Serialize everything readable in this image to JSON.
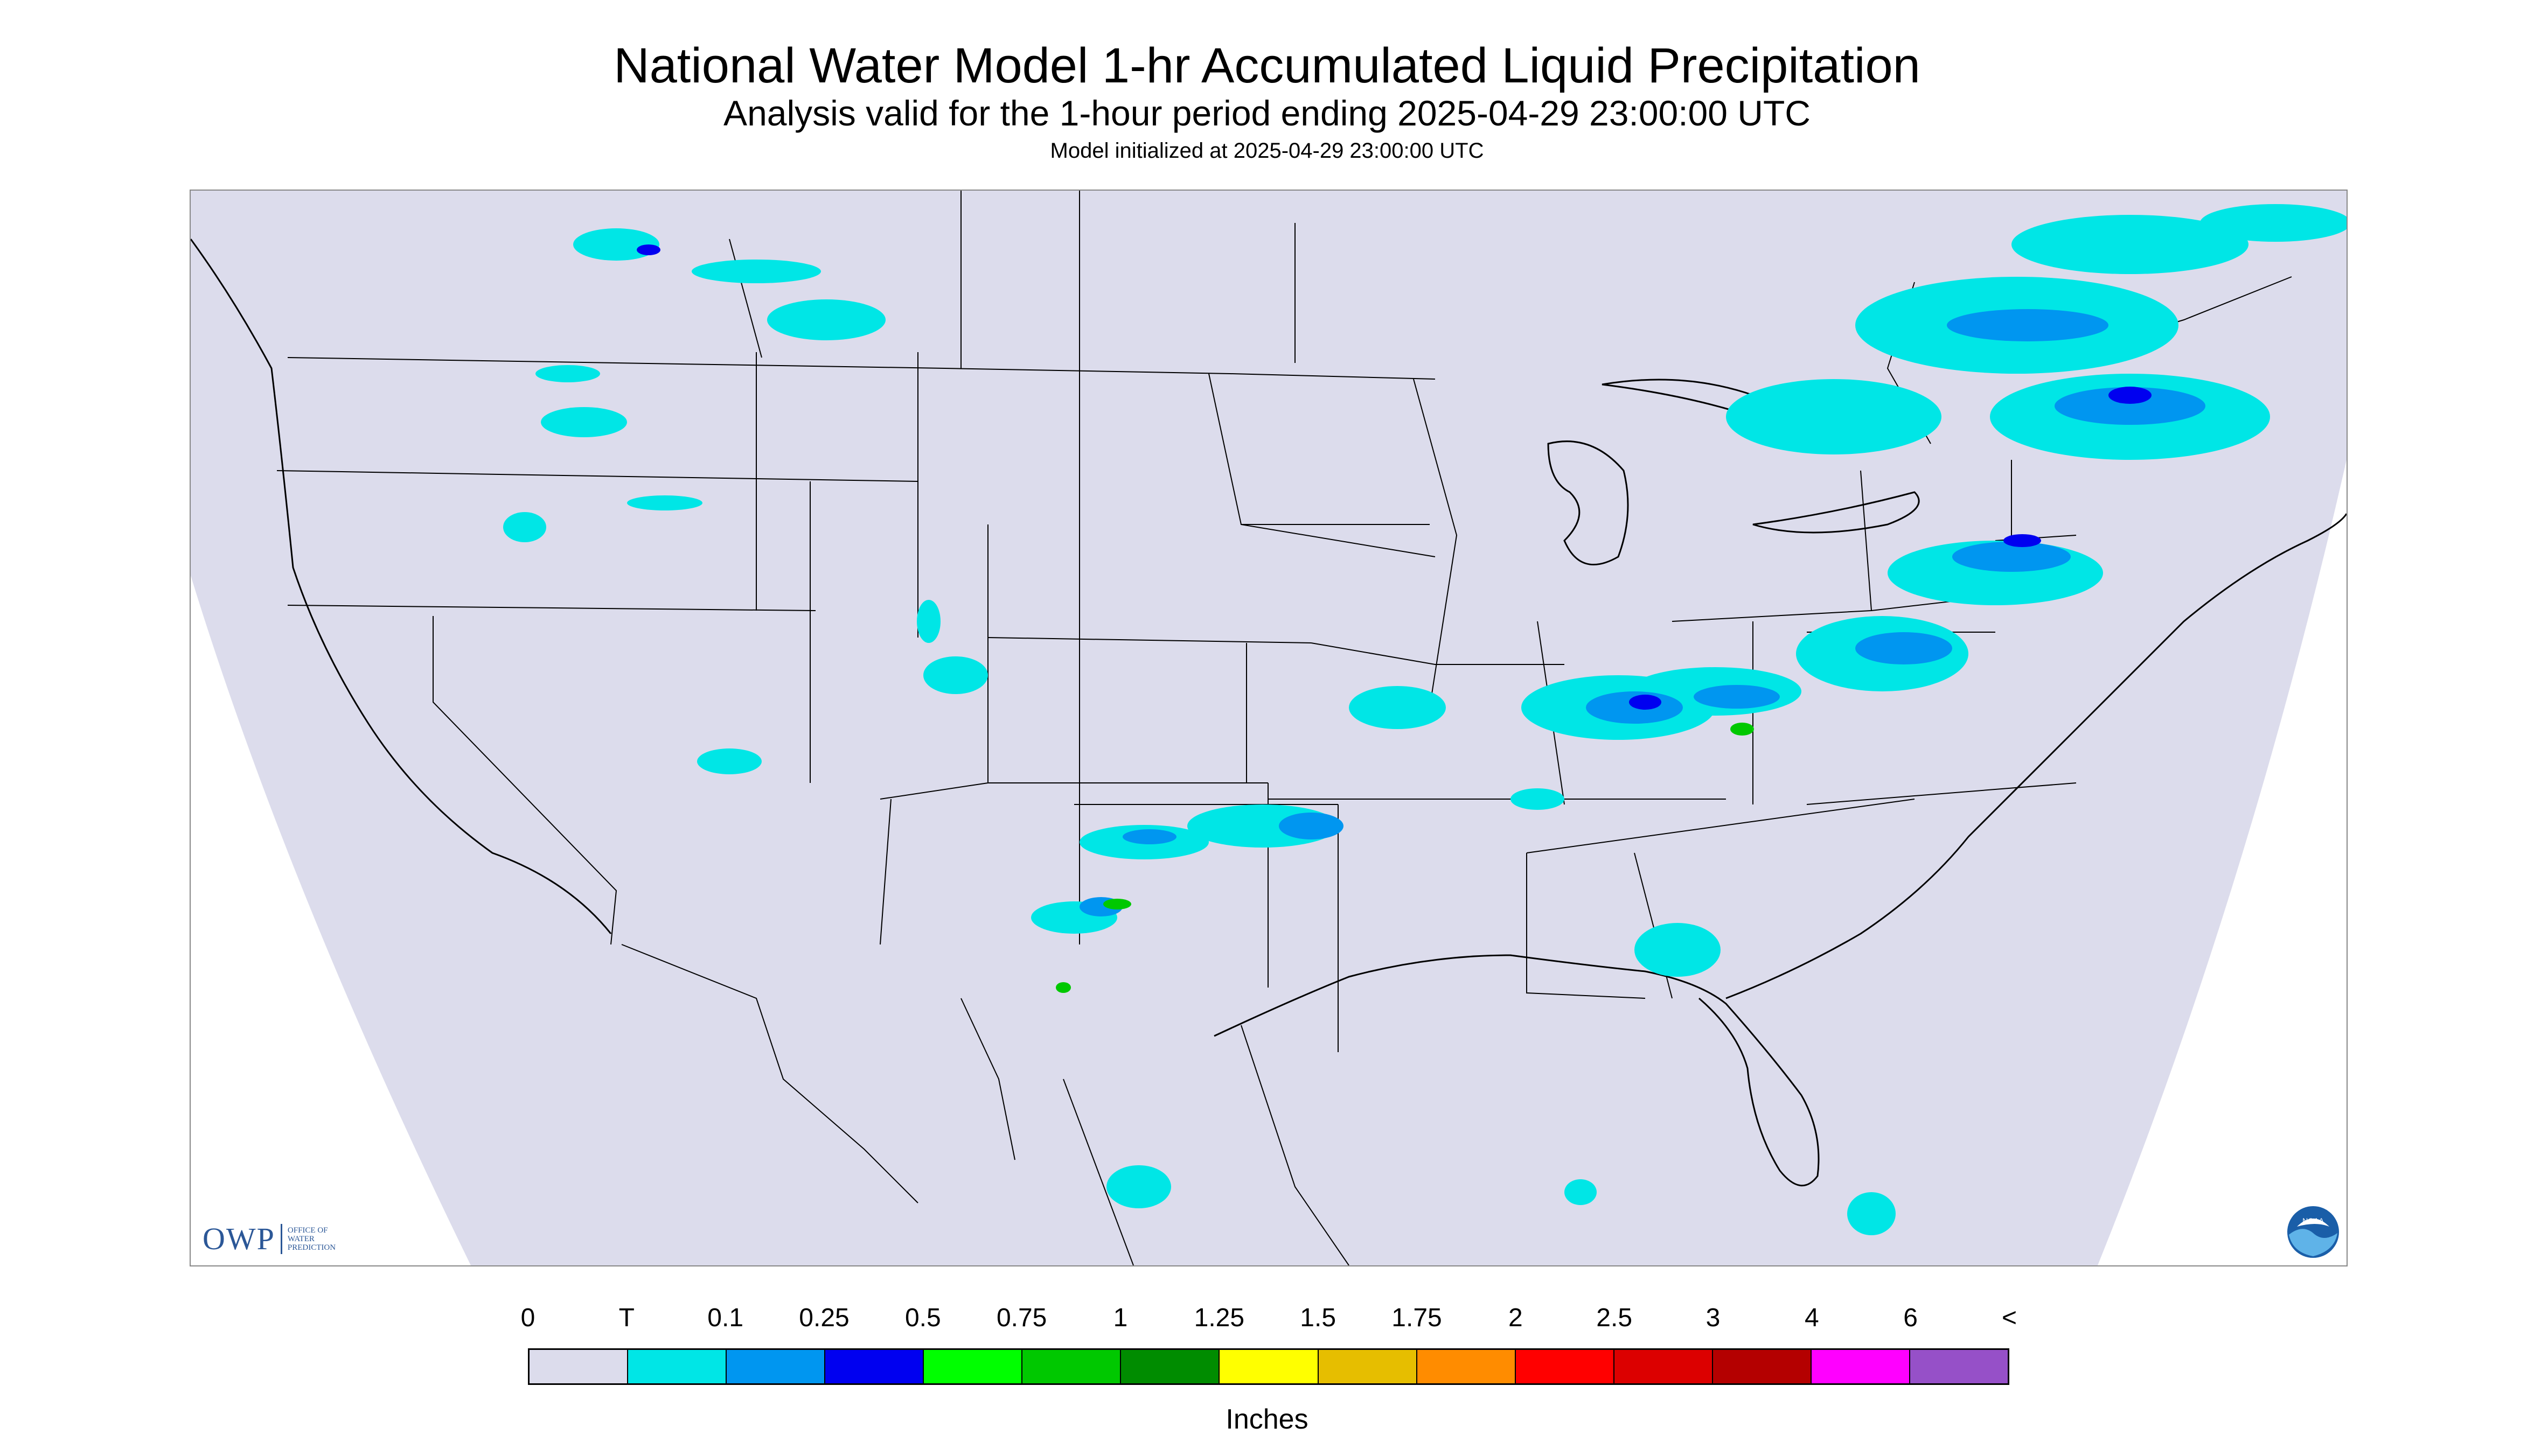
{
  "header": {
    "title": "National Water Model 1-hr Accumulated Liquid Precipitation",
    "subtitle": "Analysis valid for the 1-hour period ending 2025-04-29 23:00:00 UTC",
    "init_line": "Model initialized at 2025-04-29 23:00:00 UTC"
  },
  "logos": {
    "owp_text": "OWP",
    "owp_sub": "OFFICE OF WATER PREDICTION",
    "noaa_text": "NOAA"
  },
  "map": {
    "background_color": "#dcdcec",
    "outside_color": "#ffffff",
    "boundary_color": "#000000"
  },
  "legend": {
    "labels": [
      "0",
      "T",
      "0.1",
      "0.25",
      "0.5",
      "0.75",
      "1",
      "1.25",
      "1.5",
      "1.75",
      "2",
      "2.5",
      "3",
      "4",
      "6",
      "<"
    ],
    "colors": [
      "#dcdcec",
      "#00e6e6",
      "#0096f0",
      "#0000f0",
      "#00ff00",
      "#00c800",
      "#008c00",
      "#ffff00",
      "#e6be00",
      "#ff8c00",
      "#ff0000",
      "#dc0000",
      "#b40000",
      "#ff00ff",
      "#9650c8"
    ],
    "unit": "Inches"
  }
}
